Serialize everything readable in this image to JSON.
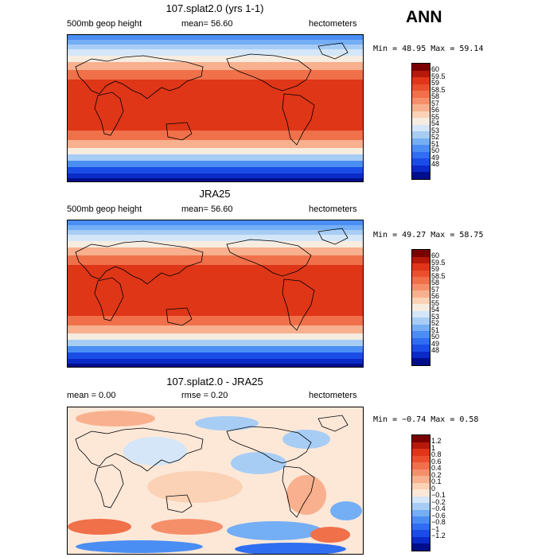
{
  "season": "ANN",
  "palette": {
    "abs": [
      "#000e8c",
      "#0a2bc7",
      "#1a4de6",
      "#2f6ef0",
      "#4a8ef3",
      "#74aef5",
      "#a8cdf5",
      "#d4e6f7",
      "#f6ece0",
      "#fbd2b6",
      "#f8b08e",
      "#f58f6a",
      "#f0704a",
      "#e9502b",
      "#de3617",
      "#b41a0a",
      "#7a0000"
    ],
    "diff": [
      "#000e8c",
      "#0a2bc7",
      "#1a4de6",
      "#2f6ef0",
      "#4a8ef3",
      "#74aef5",
      "#a8cdf5",
      "#d4e6f7",
      "#fde8d8",
      "#fbd2b6",
      "#f8b08e",
      "#f58f6a",
      "#f0704a",
      "#e9502b",
      "#de3617",
      "#b41a0a",
      "#7a0000"
    ]
  },
  "panels": [
    {
      "title": "107.splat2.0 (yrs 1-1)",
      "left_label": "500mb geop height",
      "center_label": "mean=  56.60",
      "right_label": "hectometers",
      "minmax": "Min =  48.95 Max =  59.14",
      "kind": "abs",
      "colorbar_labels": [
        "60",
        "59.5",
        "59",
        "58.5",
        "58",
        "57",
        "56",
        "55",
        "54",
        "53",
        "52",
        "51",
        "50",
        "49",
        "48"
      ]
    },
    {
      "title": "JRA25",
      "left_label": "500mb geop height",
      "center_label": "mean=  56.60",
      "right_label": "hectometers",
      "minmax": "Min =  49.27 Max =  58.75",
      "kind": "abs",
      "colorbar_labels": [
        "60",
        "59.5",
        "59",
        "58.5",
        "58",
        "57",
        "56",
        "55",
        "54",
        "53",
        "52",
        "51",
        "50",
        "49",
        "48"
      ]
    },
    {
      "title": "107.splat2.0 - JRA25",
      "left_label": "mean =    0.00",
      "center_label": "rmse =    0.20",
      "right_label": "hectometers",
      "minmax": "Min =  −0.74 Max =   0.58",
      "kind": "diff",
      "colorbar_labels": [
        "1.2",
        "1",
        "0.8",
        "0.6",
        "0.4",
        "0.2",
        "0.1",
        "0",
        "−0.1",
        "−0.2",
        "−0.4",
        "−0.6",
        "−0.8",
        "−1",
        "−1.2"
      ]
    }
  ],
  "chart_data": [
    {
      "type": "heatmap",
      "title": "107.splat2.0 (yrs 1-1)",
      "variable": "500mb geop height",
      "units": "hectometers",
      "mean": 56.6,
      "min": 48.95,
      "max": 59.14,
      "levels": [
        48,
        49,
        50,
        51,
        52,
        53,
        54,
        55,
        56,
        57,
        58,
        58.5,
        59,
        59.5,
        60
      ]
    },
    {
      "type": "heatmap",
      "title": "JRA25",
      "variable": "500mb geop height",
      "units": "hectometers",
      "mean": 56.6,
      "min": 49.27,
      "max": 58.75,
      "levels": [
        48,
        49,
        50,
        51,
        52,
        53,
        54,
        55,
        56,
        57,
        58,
        58.5,
        59,
        59.5,
        60
      ]
    },
    {
      "type": "heatmap",
      "title": "107.splat2.0 - JRA25",
      "units": "hectometers",
      "mean": 0.0,
      "rmse": 0.2,
      "min": -0.74,
      "max": 0.58,
      "levels": [
        -1.2,
        -1,
        -0.8,
        -0.6,
        -0.4,
        -0.2,
        -0.1,
        0,
        0.1,
        0.2,
        0.4,
        0.6,
        0.8,
        1,
        1.2
      ]
    }
  ]
}
